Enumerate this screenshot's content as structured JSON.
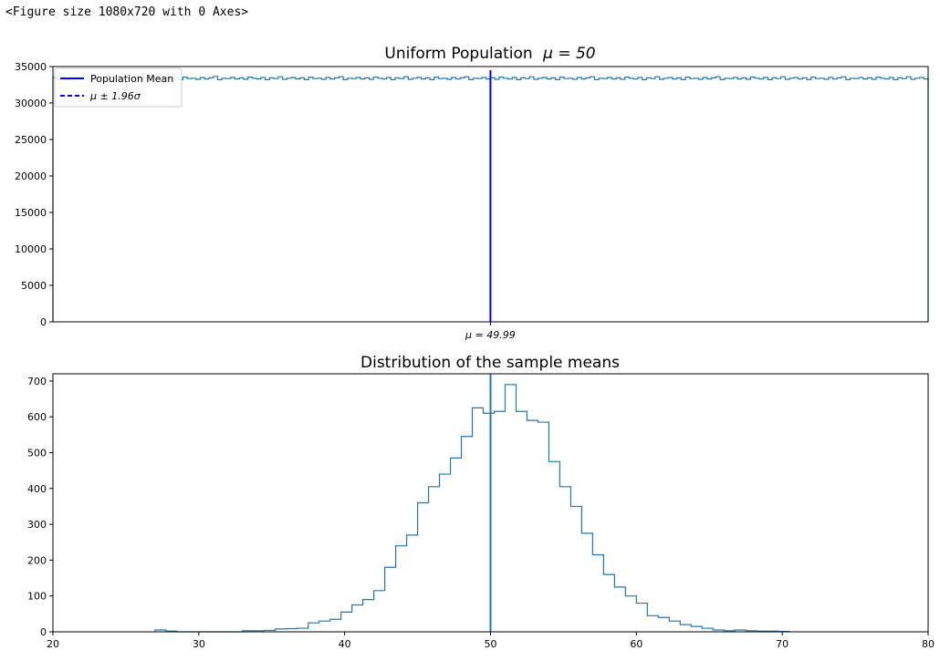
{
  "output_text": "<Figure size 1080x720 with 0 Axes>",
  "colors": {
    "hist": "#1f77b4",
    "mean_line": "#0000ff",
    "axis": "#000000"
  },
  "chart_data": [
    {
      "type": "histogram-step",
      "title": "Uniform Population",
      "title_math": "μ = 50",
      "xlim": [
        0,
        100
      ],
      "ylim": [
        0,
        35000
      ],
      "yticks": [
        0,
        5000,
        10000,
        15000,
        20000,
        25000,
        30000,
        35000
      ],
      "xtick_label": "μ = 49.99",
      "mean_value": 49.99,
      "legend": {
        "placement": "upper-left",
        "entries": [
          {
            "label": "Population Mean",
            "style": "solid"
          },
          {
            "label": "μ ± 1.96σ",
            "style": "dashed"
          }
        ]
      },
      "bins": 200,
      "values": [
        33450,
        33300,
        33500,
        33200,
        33400,
        33350,
        33550,
        33250,
        33400,
        33500,
        33300,
        33450,
        33200,
        33600,
        33350,
        33250,
        33500,
        33400,
        33300,
        33550,
        33200,
        33450,
        33350,
        33500,
        33250,
        33400,
        33600,
        33300,
        33450,
        33200,
        33550,
        33350,
        33400,
        33250,
        33500,
        33300,
        33450,
        33650,
        33200,
        33400,
        33350,
        33500,
        33300,
        33450,
        33250,
        33550,
        33400,
        33300,
        33500,
        33200,
        33450,
        33350,
        33600,
        33250,
        33400,
        33500,
        33300,
        33450,
        33200,
        33550,
        33350,
        33400,
        33250,
        33500,
        33300,
        33450,
        33600,
        33200,
        33400,
        33350,
        33500,
        33300,
        33450,
        33250,
        33550,
        33400,
        33300,
        33500,
        33200,
        33450,
        33350,
        33600,
        33250,
        33400,
        33500,
        33300,
        33450,
        33200,
        33550,
        33350,
        33400,
        33250,
        33500,
        33300,
        33450,
        33600,
        33200,
        33400,
        33350,
        33500,
        33300,
        33450,
        33250,
        33550,
        33400,
        33300,
        33500,
        33200,
        33450,
        33350,
        33600,
        33250,
        33400,
        33500,
        33300,
        33450,
        33200,
        33550,
        33350,
        33400,
        33250,
        33500,
        33300,
        33450,
        33600,
        33200,
        33400,
        33350,
        33500,
        33300,
        33450,
        33250,
        33550,
        33400,
        33300,
        33500,
        33200,
        33450,
        33350,
        33600,
        33250,
        33400,
        33500,
        33300,
        33450,
        33200,
        33550,
        33350,
        33400,
        33250,
        33500,
        33300,
        33450,
        33600,
        33200,
        33400,
        33350,
        33500,
        33300,
        33450,
        33250,
        33550,
        33400,
        33300,
        33500,
        33200,
        33450,
        33350,
        33600,
        33250,
        33400,
        33500,
        33300,
        33450,
        33200,
        33550,
        33350,
        33400,
        33250,
        33500,
        33300,
        33450,
        33600,
        33200,
        33400,
        33350,
        33500,
        33300,
        33450,
        33250,
        33550,
        33400,
        33300,
        33500,
        33200,
        33450,
        33350,
        33600,
        33250,
        33400,
        33500,
        33300
      ]
    },
    {
      "type": "histogram-step",
      "title": "Distribution of the sample means",
      "xlim": [
        20,
        80
      ],
      "ylim": [
        0,
        720
      ],
      "xticks": [
        20,
        30,
        40,
        50,
        60,
        70,
        80
      ],
      "yticks": [
        0,
        100,
        200,
        300,
        400,
        500,
        600,
        700
      ],
      "mean_value": 50,
      "bin_start": 27,
      "bin_width": 0.75,
      "values": [
        5,
        2,
        0,
        0,
        0,
        0,
        0,
        0,
        3,
        3,
        4,
        8,
        9,
        10,
        25,
        30,
        35,
        55,
        75,
        90,
        115,
        180,
        240,
        270,
        360,
        405,
        440,
        485,
        545,
        625,
        610,
        615,
        690,
        615,
        590,
        585,
        475,
        405,
        350,
        275,
        215,
        160,
        125,
        100,
        80,
        45,
        40,
        30,
        20,
        15,
        10,
        5,
        3,
        5,
        3,
        2,
        2,
        1
      ]
    }
  ]
}
